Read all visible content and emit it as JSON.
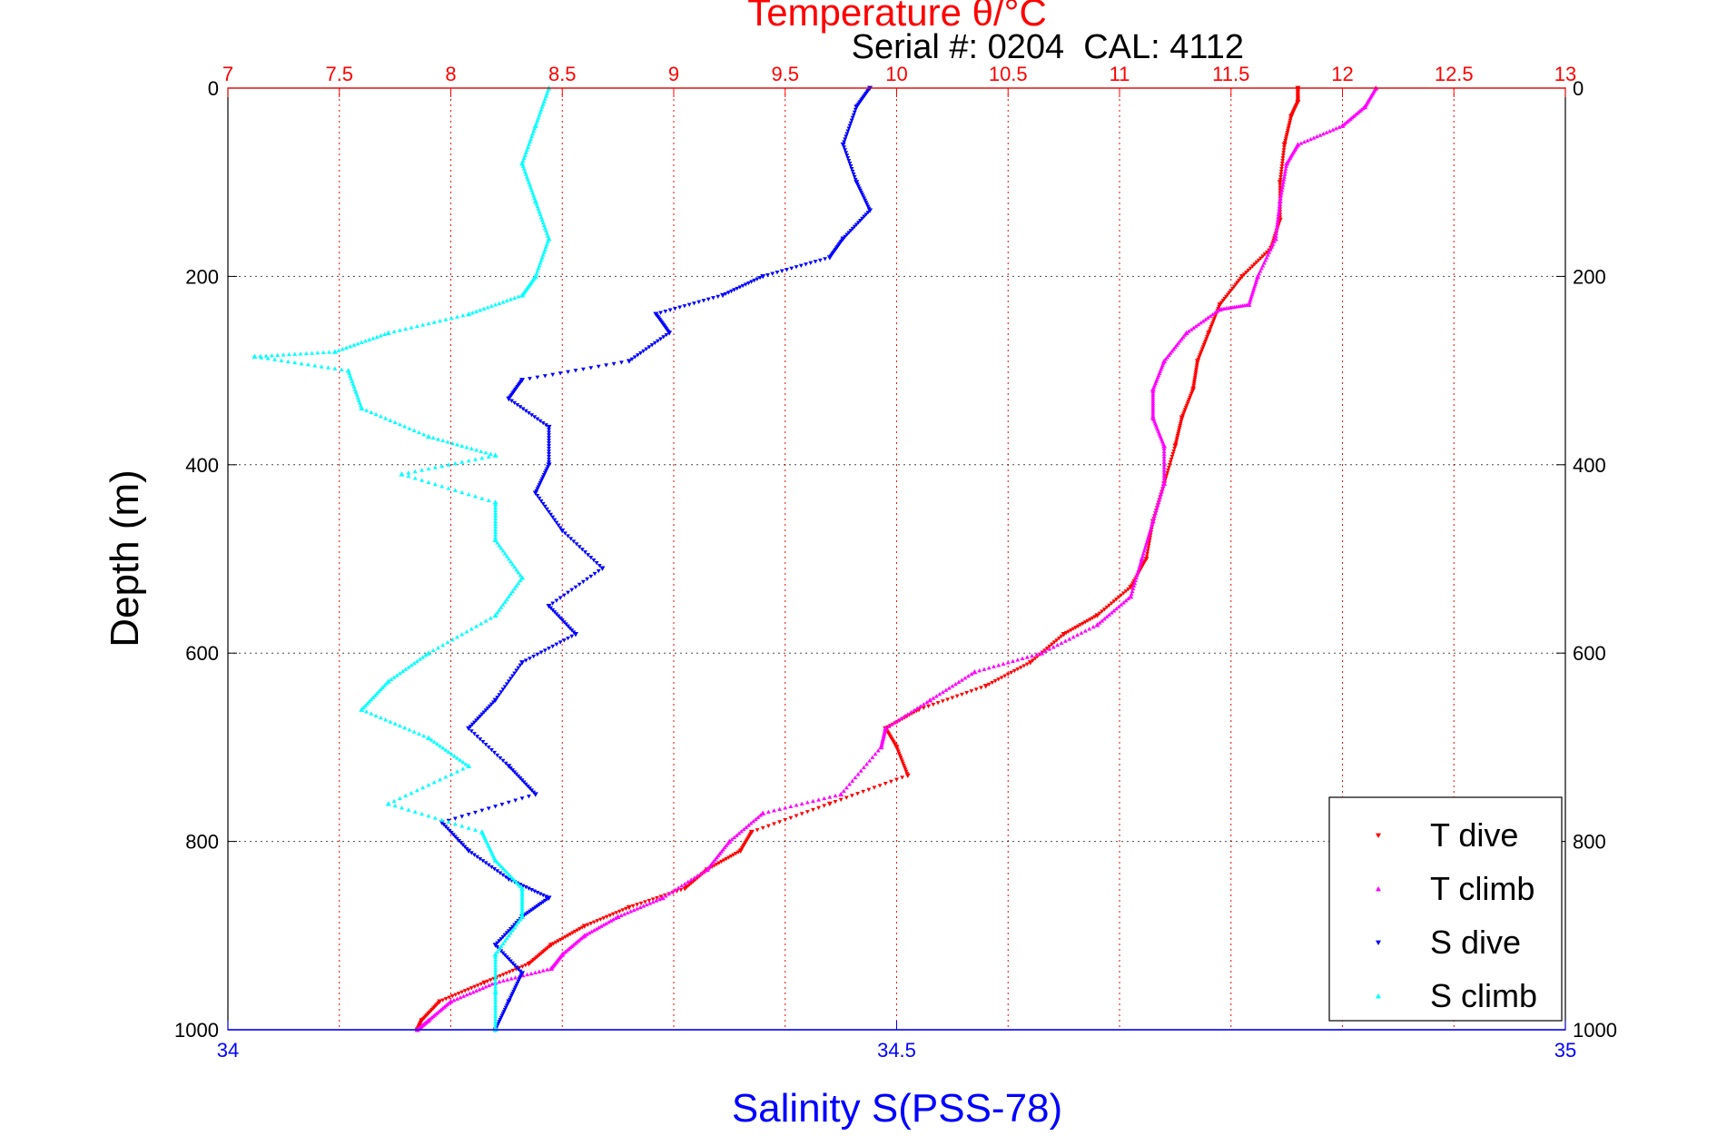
{
  "chart_data": {
    "type": "scatter",
    "title": "Temperature θ/°C",
    "subtitle": "Serial #: 0204  CAL: 4112",
    "ylabel": "Depth (m)",
    "xlabel_bottom": "Salinity S(PSS-78)",
    "xlabel_top": "Temperature θ/°C",
    "ylim": [
      0,
      1000
    ],
    "y_reversed": true,
    "y_ticks": [
      0,
      200,
      400,
      600,
      800,
      1000
    ],
    "x_top_lim": [
      7,
      13
    ],
    "x_top_ticks": [
      7,
      7.5,
      8,
      8.5,
      9,
      9.5,
      10,
      10.5,
      11,
      11.5,
      12,
      12.5,
      13
    ],
    "x_bottom_lim": [
      34,
      35
    ],
    "x_bottom_ticks": [
      34,
      34.5,
      35
    ],
    "grid": true,
    "legend_position": "bottom-right",
    "colors": {
      "temperature_axis": "#ff0000",
      "salinity_axis": "#0000ff",
      "grid_vertical": "#ff0000",
      "grid_horizontal": "#000000"
    },
    "series": [
      {
        "name": "T dive",
        "axis": "temperature",
        "color": "#ff0000",
        "marker": "triangle-down",
        "points": [
          [
            11.8,
            0
          ],
          [
            11.8,
            15
          ],
          [
            11.77,
            30
          ],
          [
            11.74,
            60
          ],
          [
            11.72,
            100
          ],
          [
            11.72,
            140
          ],
          [
            11.68,
            170
          ],
          [
            11.55,
            200
          ],
          [
            11.45,
            230
          ],
          [
            11.4,
            260
          ],
          [
            11.35,
            290
          ],
          [
            11.33,
            320
          ],
          [
            11.28,
            350
          ],
          [
            11.25,
            380
          ],
          [
            11.2,
            420
          ],
          [
            11.15,
            460
          ],
          [
            11.12,
            500
          ],
          [
            11.05,
            530
          ],
          [
            10.9,
            560
          ],
          [
            10.75,
            580
          ],
          [
            10.6,
            610
          ],
          [
            10.4,
            635
          ],
          [
            10.1,
            660
          ],
          [
            9.95,
            680
          ],
          [
            10.0,
            700
          ],
          [
            10.05,
            730
          ],
          [
            9.7,
            760
          ],
          [
            9.35,
            790
          ],
          [
            9.3,
            810
          ],
          [
            9.15,
            830
          ],
          [
            9.05,
            850
          ],
          [
            8.8,
            870
          ],
          [
            8.6,
            890
          ],
          [
            8.45,
            910
          ],
          [
            8.35,
            930
          ],
          [
            8.15,
            950
          ],
          [
            7.95,
            970
          ],
          [
            7.87,
            990
          ],
          [
            7.85,
            1000
          ]
        ]
      },
      {
        "name": "T climb",
        "axis": "temperature",
        "color": "#ff00ff",
        "marker": "triangle-up",
        "points": [
          [
            12.15,
            0
          ],
          [
            12.1,
            20
          ],
          [
            12.0,
            40
          ],
          [
            11.8,
            60
          ],
          [
            11.75,
            80
          ],
          [
            11.72,
            120
          ],
          [
            11.7,
            160
          ],
          [
            11.62,
            200
          ],
          [
            11.58,
            230
          ],
          [
            11.45,
            235
          ],
          [
            11.3,
            260
          ],
          [
            11.2,
            290
          ],
          [
            11.15,
            320
          ],
          [
            11.15,
            350
          ],
          [
            11.2,
            380
          ],
          [
            11.2,
            420
          ],
          [
            11.15,
            460
          ],
          [
            11.1,
            500
          ],
          [
            11.05,
            540
          ],
          [
            10.9,
            570
          ],
          [
            10.65,
            600
          ],
          [
            10.35,
            620
          ],
          [
            10.15,
            650
          ],
          [
            9.95,
            680
          ],
          [
            9.93,
            700
          ],
          [
            9.75,
            750
          ],
          [
            9.4,
            770
          ],
          [
            9.25,
            800
          ],
          [
            9.15,
            830
          ],
          [
            8.95,
            860
          ],
          [
            8.75,
            880
          ],
          [
            8.6,
            900
          ],
          [
            8.5,
            920
          ],
          [
            8.45,
            935
          ],
          [
            8.2,
            950
          ],
          [
            8.0,
            970
          ],
          [
            7.9,
            990
          ],
          [
            7.85,
            1000
          ]
        ]
      },
      {
        "name": "S dive",
        "axis": "salinity",
        "color": "#0000ff",
        "marker": "triangle-down",
        "points": [
          [
            34.48,
            0
          ],
          [
            34.47,
            20
          ],
          [
            34.46,
            60
          ],
          [
            34.47,
            100
          ],
          [
            34.48,
            130
          ],
          [
            34.46,
            160
          ],
          [
            34.45,
            180
          ],
          [
            34.4,
            200
          ],
          [
            34.37,
            220
          ],
          [
            34.32,
            240
          ],
          [
            34.33,
            260
          ],
          [
            34.3,
            290
          ],
          [
            34.22,
            310
          ],
          [
            34.21,
            330
          ],
          [
            34.24,
            360
          ],
          [
            34.24,
            400
          ],
          [
            34.23,
            430
          ],
          [
            34.25,
            470
          ],
          [
            34.28,
            510
          ],
          [
            34.24,
            550
          ],
          [
            34.26,
            580
          ],
          [
            34.22,
            610
          ],
          [
            34.2,
            650
          ],
          [
            34.18,
            680
          ],
          [
            34.21,
            720
          ],
          [
            34.23,
            750
          ],
          [
            34.16,
            780
          ],
          [
            34.18,
            810
          ],
          [
            34.21,
            840
          ],
          [
            34.24,
            860
          ],
          [
            34.22,
            880
          ],
          [
            34.2,
            910
          ],
          [
            34.22,
            940
          ],
          [
            34.21,
            970
          ],
          [
            34.2,
            1000
          ]
        ]
      },
      {
        "name": "S climb",
        "axis": "salinity",
        "color": "#00ffff",
        "marker": "triangle-up",
        "points": [
          [
            34.24,
            0
          ],
          [
            34.23,
            40
          ],
          [
            34.22,
            80
          ],
          [
            34.23,
            120
          ],
          [
            34.24,
            160
          ],
          [
            34.23,
            200
          ],
          [
            34.22,
            220
          ],
          [
            34.18,
            240
          ],
          [
            34.12,
            260
          ],
          [
            34.08,
            280
          ],
          [
            34.02,
            285
          ],
          [
            34.09,
            300
          ],
          [
            34.1,
            340
          ],
          [
            34.15,
            370
          ],
          [
            34.2,
            390
          ],
          [
            34.13,
            410
          ],
          [
            34.2,
            440
          ],
          [
            34.2,
            480
          ],
          [
            34.22,
            520
          ],
          [
            34.2,
            560
          ],
          [
            34.15,
            600
          ],
          [
            34.12,
            630
          ],
          [
            34.1,
            660
          ],
          [
            34.15,
            690
          ],
          [
            34.18,
            720
          ],
          [
            34.12,
            760
          ],
          [
            34.19,
            790
          ],
          [
            34.2,
            820
          ],
          [
            34.22,
            850
          ],
          [
            34.22,
            880
          ],
          [
            34.2,
            920
          ],
          [
            34.2,
            960
          ],
          [
            34.2,
            1000
          ]
        ]
      }
    ],
    "legend": [
      "T dive",
      "T climb",
      "S dive",
      "S climb"
    ]
  }
}
